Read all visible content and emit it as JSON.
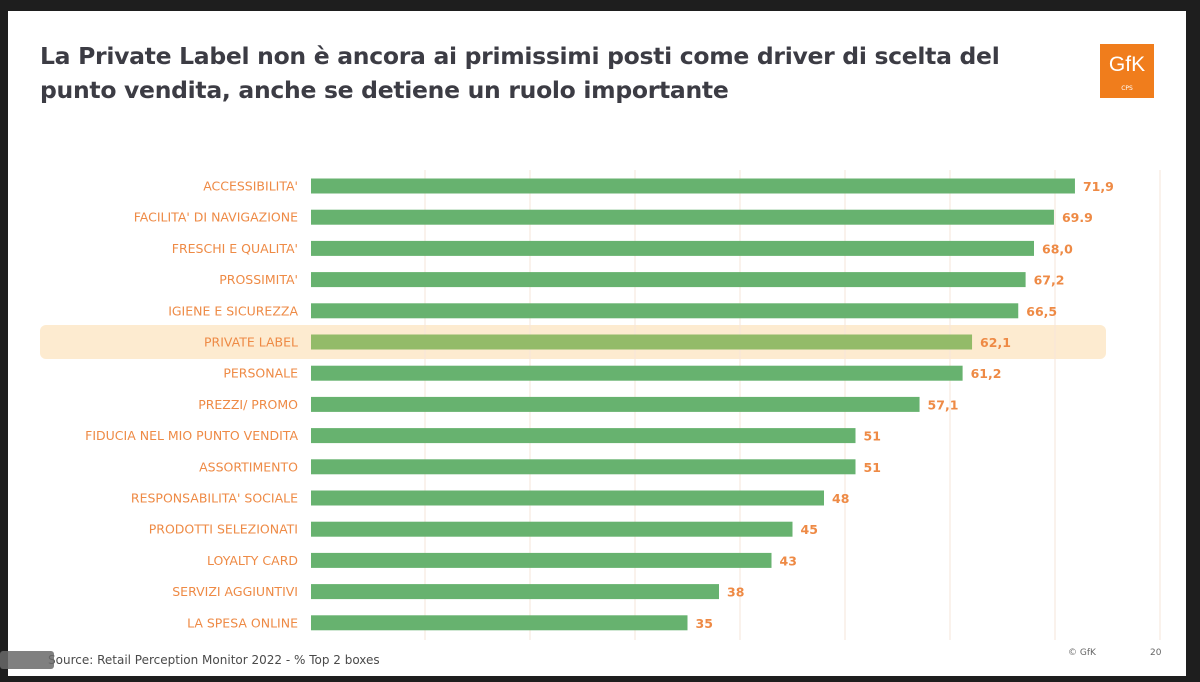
{
  "slide": {
    "title": "La Private Label non è ancora ai primissimi posti come driver di scelta del punto vendita, anche se detiene un ruolo importante",
    "logo_text": "GfK",
    "logo_sub": "CPS",
    "source": "Source: Retail Perception Monitor 2022 - % Top 2 boxes",
    "copyright": "© GfK",
    "page_number": "20"
  },
  "colors": {
    "bar": "#67b26f",
    "highlight_bar": "#93bb69",
    "highlight_bg": "#fdebd0",
    "label": "#ee8a45",
    "brand": "#f07d1c"
  },
  "chart_data": {
    "type": "bar",
    "orientation": "horizontal",
    "title": "",
    "categories": [
      "ACCESSIBILITA'",
      "FACILITA' DI NAVIGAZIONE",
      "FRESCHI E QUALITA'",
      "PROSSIMITA'",
      "IGIENE E SICUREZZA",
      "PRIVATE LABEL",
      "PERSONALE",
      "PREZZI/ PROMO",
      "FIDUCIA NEL MIO PUNTO VENDITA",
      "ASSORTIMENTO",
      "RESPONSABILITA' SOCIALE",
      "PRODOTTI SELEZIONATI",
      "LOYALTY CARD",
      "SERVIZI AGGIUNTIVI",
      "LA SPESA ONLINE"
    ],
    "values": [
      71.9,
      69.9,
      68.0,
      67.2,
      66.5,
      62.1,
      61.2,
      57.1,
      51,
      51,
      48,
      45,
      43,
      38,
      35
    ],
    "value_labels": [
      "71,9",
      "69.9",
      "68,0",
      "67,2",
      "66,5",
      "62,1",
      "61,2",
      "57,1",
      "51",
      "51",
      "48",
      "45",
      "43",
      "38",
      "35"
    ],
    "highlighted": "PRIVATE LABEL",
    "xlim": [
      0,
      80
    ],
    "grid": true,
    "legend": "none"
  }
}
